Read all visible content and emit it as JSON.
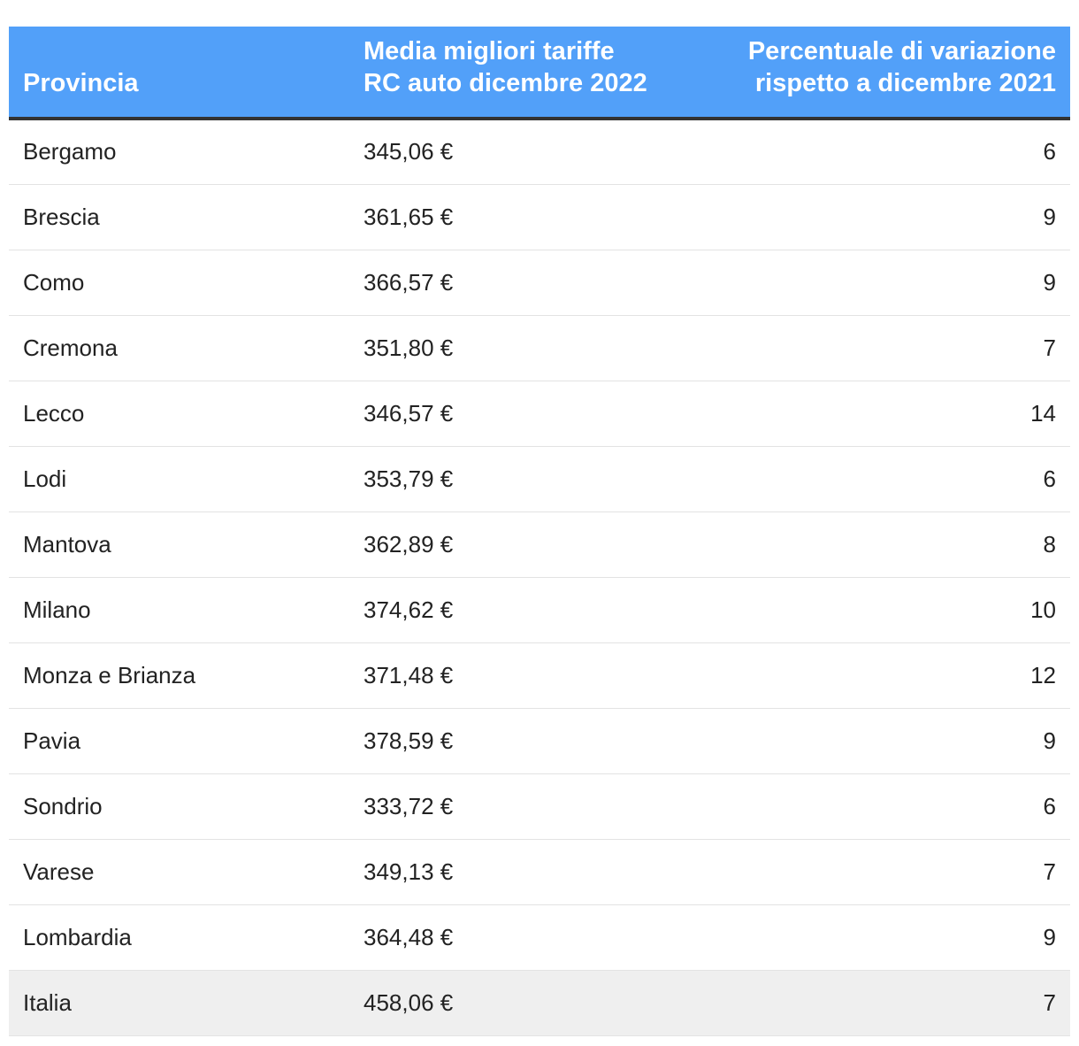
{
  "header": {
    "col_province": "Provincia",
    "col_avg_line1": "Media migliori tariffe",
    "col_avg_line2": "RC auto dicembre 2022",
    "col_pct_line1": "Percentuale di variazione",
    "col_pct_line2": "rispetto a dicembre 2021"
  },
  "rows": [
    {
      "province": "Bergamo",
      "avg": "345,06 €",
      "pct": "6"
    },
    {
      "province": "Brescia",
      "avg": "361,65 €",
      "pct": "9"
    },
    {
      "province": "Como",
      "avg": "366,57 €",
      "pct": "9"
    },
    {
      "province": "Cremona",
      "avg": "351,80 €",
      "pct": "7"
    },
    {
      "province": "Lecco",
      "avg": "346,57 €",
      "pct": "14"
    },
    {
      "province": "Lodi",
      "avg": "353,79 €",
      "pct": "6"
    },
    {
      "province": "Mantova",
      "avg": "362,89 €",
      "pct": "8"
    },
    {
      "province": "Milano",
      "avg": "374,62 €",
      "pct": "10"
    },
    {
      "province": "Monza e Brianza",
      "avg": "371,48 €",
      "pct": "12"
    },
    {
      "province": "Pavia",
      "avg": "378,59 €",
      "pct": "9"
    },
    {
      "province": "Sondrio",
      "avg": "333,72 €",
      "pct": "6"
    },
    {
      "province": "Varese",
      "avg": "349,13 €",
      "pct": "7"
    },
    {
      "province": "Lombardia",
      "avg": "364,48 €",
      "pct": "9"
    },
    {
      "province": "Italia",
      "avg": "458,06 €",
      "pct": "7"
    }
  ],
  "colors": {
    "header_bg": "#52a0f9",
    "header_text": "#ffffff",
    "header_rule": "#333333",
    "highlight_row_bg": "#efefef"
  }
}
